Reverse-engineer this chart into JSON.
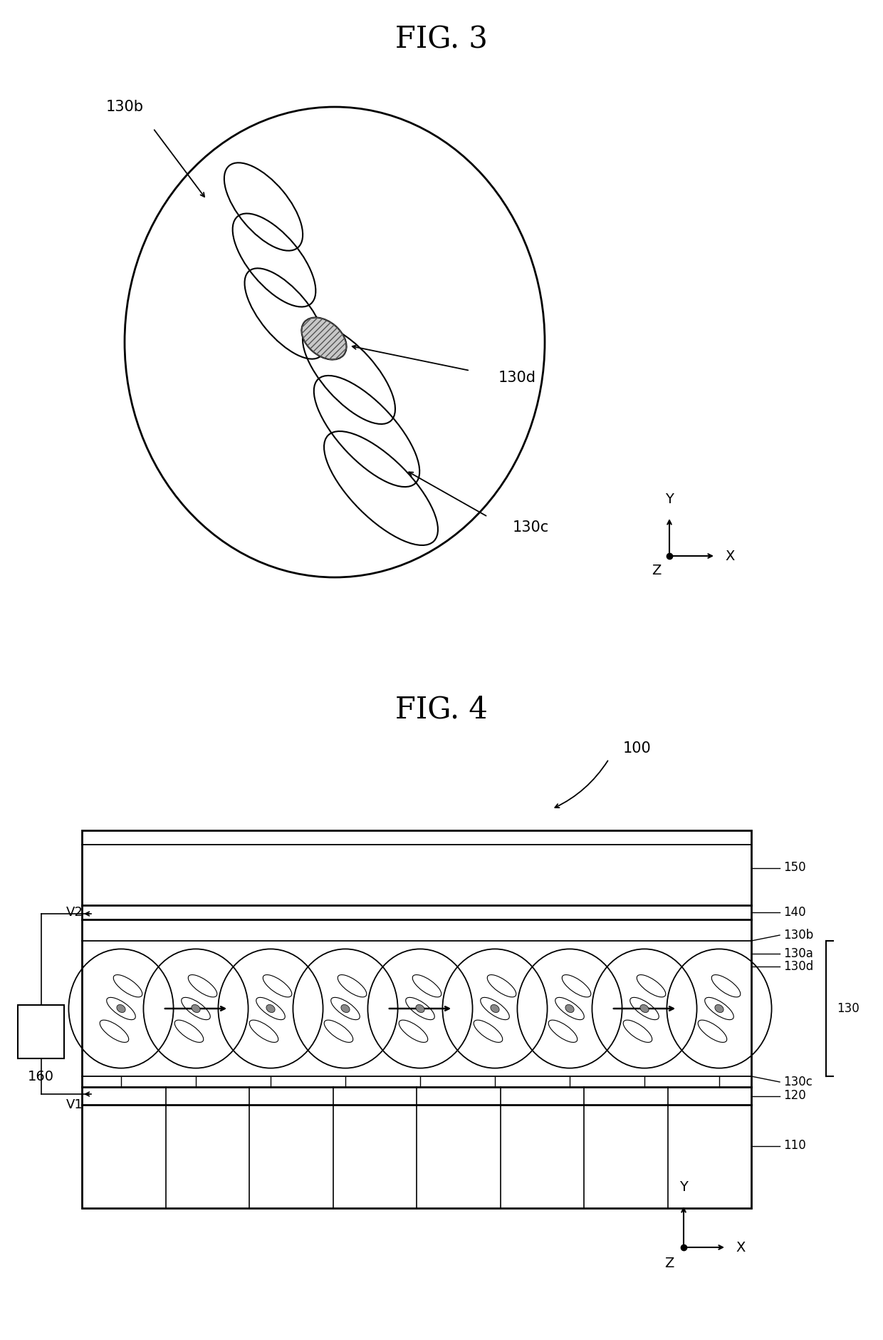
{
  "fig3_title": "FIG. 3",
  "fig4_title": "FIG. 4",
  "bg_color": "#ffffff",
  "line_color": "#000000",
  "font_size_title": 30,
  "font_size_label": 15,
  "font_size_axis": 14,
  "label_130b_fig3": "130b",
  "label_130c_fig3": "130c",
  "label_130d_fig3": "130d",
  "label_100": "100",
  "label_150": "150",
  "label_140": "140",
  "label_130b": "130b",
  "label_130a": "130a",
  "label_130": "130",
  "label_130d": "130d",
  "label_130c": "130c",
  "label_120": "120",
  "label_110": "110",
  "label_160": "160",
  "label_V2": "V2",
  "label_V1": "V1",
  "label_X": "X",
  "label_Y": "Y",
  "label_Z": "Z"
}
